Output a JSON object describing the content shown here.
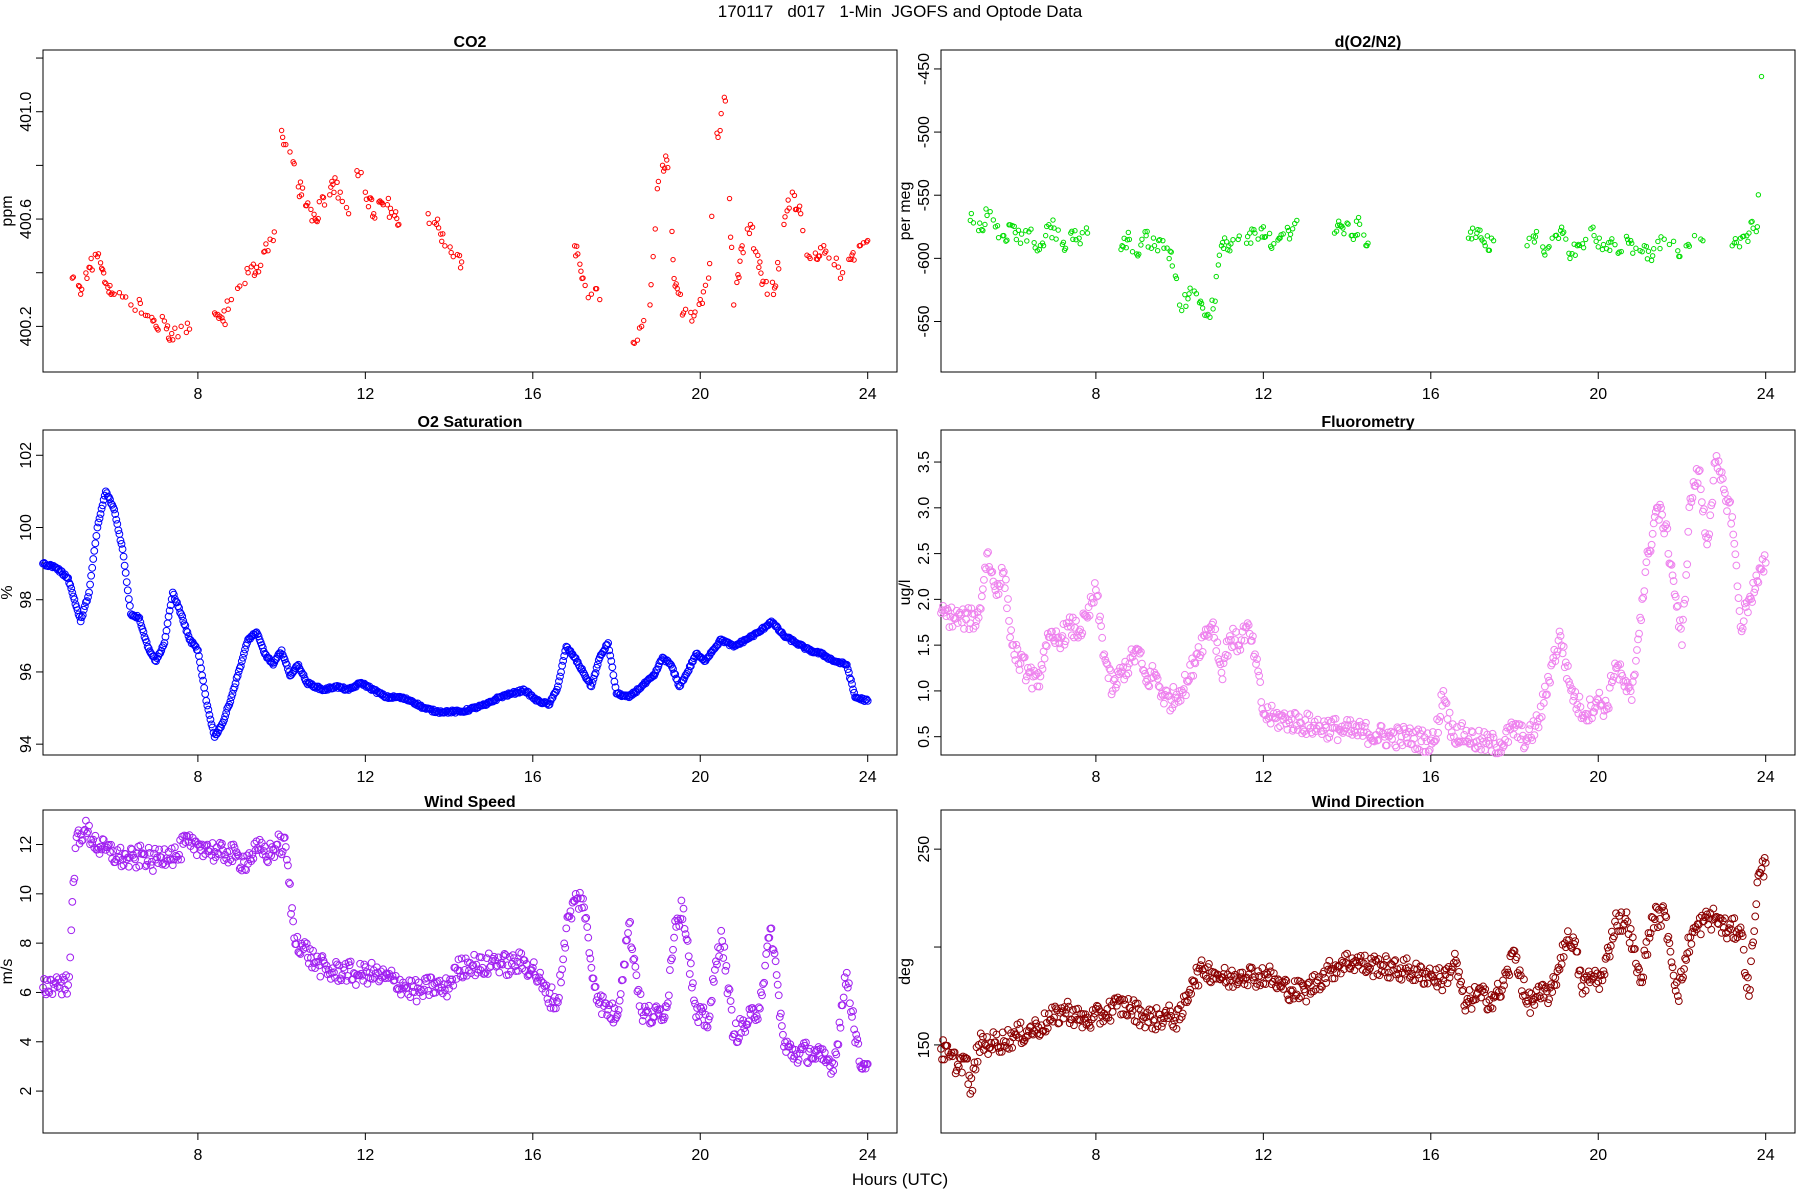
{
  "figure": {
    "title": "170117   d017   1-Min  JGOFS and Optode Data",
    "xlabel": "Hours (UTC)"
  },
  "chart_data": [
    {
      "id": "co2",
      "type": "scatter",
      "title": "CO2",
      "ylabel": "ppm",
      "color": "#ff0000",
      "marker_size": 2.2,
      "xlim": [
        4.3,
        24.7
      ],
      "ylim": [
        400.03,
        401.23
      ],
      "xticks": [
        8,
        12,
        16,
        20,
        24
      ],
      "xtick_labels": [
        "8",
        "12",
        "16",
        "20",
        "24"
      ],
      "yticks": [
        400.2,
        400.4,
        400.6,
        400.8,
        401.0,
        401.2
      ],
      "ytick_labels": [
        "400.2",
        "",
        "400.6",
        "",
        "401.0",
        ""
      ],
      "x": [
        5.0,
        5.2,
        5.4,
        5.6,
        5.8,
        6.0,
        6.2,
        6.4,
        6.6,
        6.8,
        7.0,
        7.2,
        7.4,
        7.6,
        7.8,
        8.4,
        8.6,
        8.8,
        9.0,
        9.2,
        9.4,
        9.6,
        9.8,
        10.0,
        10.2,
        10.4,
        10.6,
        10.8,
        11.0,
        11.2,
        11.4,
        11.6,
        11.8,
        12.0,
        12.2,
        12.4,
        12.6,
        12.8,
        13.5,
        13.7,
        13.9,
        14.1,
        14.3,
        17.0,
        17.2,
        17.4,
        17.6,
        18.4,
        18.6,
        18.8,
        19.0,
        19.2,
        19.4,
        19.6,
        19.8,
        20.0,
        20.2,
        20.4,
        20.6,
        20.8,
        21.0,
        21.2,
        21.4,
        21.6,
        21.8,
        22.0,
        22.2,
        22.4,
        22.6,
        22.8,
        23.0,
        23.2,
        23.4,
        23.6,
        23.8,
        24.0
      ],
      "y": [
        400.38,
        400.32,
        400.42,
        400.46,
        400.36,
        400.32,
        400.31,
        400.28,
        400.3,
        400.24,
        400.2,
        400.22,
        400.15,
        400.2,
        400.19,
        400.25,
        400.22,
        400.3,
        400.35,
        400.4,
        400.42,
        400.48,
        400.52,
        400.93,
        400.85,
        400.72,
        400.65,
        400.6,
        400.68,
        400.74,
        400.7,
        400.62,
        400.78,
        400.7,
        400.62,
        400.66,
        400.64,
        400.58,
        400.62,
        400.58,
        400.5,
        400.46,
        400.44,
        400.5,
        400.38,
        400.32,
        400.3,
        400.14,
        400.2,
        400.28,
        400.74,
        400.82,
        400.35,
        400.25,
        400.22,
        400.3,
        400.38,
        400.92,
        401.04,
        400.28,
        400.5,
        400.58,
        400.42,
        400.32,
        400.35,
        400.58,
        400.7,
        400.62,
        400.46,
        400.45,
        400.48,
        400.43,
        400.4,
        400.45,
        400.5,
        400.52
      ]
    },
    {
      "id": "do2n2",
      "type": "scatter",
      "title": "d(O2/N2)",
      "ylabel": "per meg",
      "color": "#00dd00",
      "marker_size": 2.2,
      "xlim": [
        4.3,
        24.7
      ],
      "ylim": [
        -690,
        -435
      ],
      "xticks": [
        8,
        12,
        16,
        20,
        24
      ],
      "xtick_labels": [
        "8",
        "12",
        "16",
        "20",
        "24"
      ],
      "yticks": [
        -650,
        -600,
        -550,
        -500,
        -450
      ],
      "ytick_labels": [
        "-650",
        "-600",
        "-550",
        "-500",
        "-450"
      ],
      "x": [
        5.0,
        5.2,
        5.4,
        5.6,
        5.8,
        6.0,
        6.2,
        6.4,
        6.6,
        6.8,
        7.0,
        7.2,
        7.4,
        7.6,
        7.8,
        8.6,
        8.8,
        9.0,
        9.2,
        9.4,
        9.6,
        9.8,
        10.0,
        10.2,
        10.4,
        10.6,
        10.8,
        11.0,
        11.2,
        11.4,
        11.6,
        11.8,
        12.0,
        12.2,
        12.4,
        12.6,
        12.8,
        13.7,
        13.9,
        14.1,
        14.3,
        14.5,
        16.9,
        17.1,
        17.3,
        17.5,
        18.3,
        18.5,
        18.7,
        18.9,
        19.1,
        19.3,
        19.5,
        19.7,
        19.9,
        20.1,
        20.3,
        20.5,
        20.7,
        20.9,
        21.1,
        21.3,
        21.5,
        21.7,
        21.9,
        22.1,
        22.3,
        22.5,
        23.2,
        23.4,
        23.6,
        23.8,
        23.9
      ],
      "y": [
        -570,
        -578,
        -566,
        -575,
        -582,
        -574,
        -588,
        -579,
        -594,
        -582,
        -576,
        -589,
        -580,
        -584,
        -580,
        -593,
        -585,
        -598,
        -582,
        -590,
        -586,
        -595,
        -637,
        -632,
        -628,
        -645,
        -640,
        -590,
        -594,
        -585,
        -588,
        -580,
        -575,
        -592,
        -584,
        -578,
        -570,
        -580,
        -576,
        -582,
        -573,
        -588,
        -584,
        -580,
        -590,
        -586,
        -590,
        -583,
        -595,
        -584,
        -578,
        -596,
        -590,
        -585,
        -582,
        -593,
        -587,
        -595,
        -585,
        -592,
        -590,
        -598,
        -583,
        -589,
        -594,
        -590,
        -582,
        -586,
        -590,
        -584,
        -580,
        -575,
        -456
      ]
    },
    {
      "id": "o2sat",
      "type": "scatter",
      "title": "O2 Saturation",
      "ylabel": "%",
      "color": "#0000ff",
      "marker_size": 3.4,
      "xlim": [
        4.3,
        24.7
      ],
      "ylim": [
        93.7,
        102.7
      ],
      "xticks": [
        8,
        12,
        16,
        20,
        24
      ],
      "xtick_labels": [
        "8",
        "12",
        "16",
        "20",
        "24"
      ],
      "yticks": [
        94,
        96,
        98,
        100,
        102
      ],
      "ytick_labels": [
        "94",
        "96",
        "98",
        "100",
        "102"
      ],
      "x": [
        4.3,
        4.6,
        4.9,
        5.2,
        5.4,
        5.6,
        5.8,
        6.0,
        6.2,
        6.4,
        6.6,
        6.8,
        7.0,
        7.2,
        7.4,
        7.6,
        7.8,
        8.0,
        8.2,
        8.4,
        8.6,
        8.8,
        9.0,
        9.2,
        9.4,
        9.6,
        9.8,
        10.0,
        10.2,
        10.4,
        10.6,
        10.8,
        11.0,
        11.3,
        11.6,
        11.9,
        12.2,
        12.5,
        12.8,
        13.1,
        13.4,
        13.7,
        14.0,
        14.3,
        14.6,
        14.9,
        15.2,
        15.5,
        15.8,
        16.1,
        16.4,
        16.6,
        16.8,
        17.0,
        17.2,
        17.4,
        17.6,
        17.8,
        18.0,
        18.3,
        18.6,
        18.9,
        19.1,
        19.3,
        19.5,
        19.7,
        19.9,
        20.1,
        20.3,
        20.5,
        20.8,
        21.1,
        21.4,
        21.7,
        22.0,
        22.3,
        22.6,
        22.9,
        23.2,
        23.5,
        23.7,
        24.0
      ],
      "y": [
        99.0,
        98.9,
        98.6,
        97.4,
        98.2,
        100.0,
        101.0,
        100.5,
        99.4,
        97.6,
        97.5,
        96.7,
        96.3,
        96.8,
        98.2,
        97.6,
        96.9,
        96.6,
        95.2,
        94.2,
        94.6,
        95.3,
        96.1,
        96.9,
        97.1,
        96.5,
        96.2,
        96.6,
        95.9,
        96.2,
        95.7,
        95.6,
        95.5,
        95.6,
        95.5,
        95.7,
        95.5,
        95.3,
        95.3,
        95.2,
        95.0,
        94.9,
        94.9,
        94.9,
        95.0,
        95.1,
        95.3,
        95.4,
        95.5,
        95.2,
        95.1,
        95.6,
        96.7,
        96.4,
        96.0,
        95.6,
        96.4,
        96.8,
        95.4,
        95.3,
        95.6,
        95.9,
        96.4,
        96.2,
        95.6,
        96.0,
        96.5,
        96.3,
        96.6,
        96.9,
        96.7,
        96.9,
        97.1,
        97.4,
        97.0,
        96.8,
        96.6,
        96.5,
        96.3,
        96.2,
        95.3,
        95.2
      ]
    },
    {
      "id": "fluor",
      "type": "scatter",
      "title": "Fluorometry",
      "ylabel": "ug/l",
      "color": "#ee82ee",
      "marker_size": 3.4,
      "xlim": [
        4.3,
        24.7
      ],
      "ylim": [
        0.3,
        3.85
      ],
      "xticks": [
        8,
        12,
        16,
        20,
        24
      ],
      "xtick_labels": [
        "8",
        "12",
        "16",
        "20",
        "24"
      ],
      "yticks": [
        0.5,
        1.0,
        1.5,
        2.0,
        2.5,
        3.0,
        3.5
      ],
      "ytick_labels": [
        "0.5",
        "1.0",
        "1.5",
        "2.0",
        "2.5",
        "3.0",
        "3.5"
      ],
      "x": [
        4.3,
        4.6,
        4.9,
        5.2,
        5.4,
        5.6,
        5.8,
        6.0,
        6.2,
        6.4,
        6.6,
        6.8,
        7.0,
        7.2,
        7.4,
        7.6,
        7.8,
        8.0,
        8.2,
        8.4,
        8.6,
        8.8,
        9.0,
        9.2,
        9.4,
        9.6,
        9.8,
        10.0,
        10.2,
        10.4,
        10.6,
        10.8,
        11.0,
        11.2,
        11.4,
        11.6,
        11.8,
        12.0,
        12.3,
        12.6,
        12.9,
        13.2,
        13.5,
        13.8,
        14.1,
        14.4,
        14.7,
        15.0,
        15.3,
        15.6,
        15.9,
        16.1,
        16.3,
        16.5,
        16.8,
        17.1,
        17.4,
        17.7,
        18.0,
        18.3,
        18.6,
        18.9,
        19.1,
        19.3,
        19.5,
        19.7,
        20.0,
        20.2,
        20.4,
        20.6,
        20.8,
        21.0,
        21.2,
        21.4,
        21.6,
        21.8,
        22.0,
        22.2,
        22.4,
        22.6,
        22.8,
        23.0,
        23.2,
        23.4,
        23.6,
        23.8,
        24.0
      ],
      "y": [
        1.85,
        1.8,
        1.78,
        1.8,
        2.5,
        2.1,
        2.3,
        1.5,
        1.3,
        1.2,
        1.05,
        1.5,
        1.55,
        1.6,
        1.7,
        1.65,
        1.8,
        2.1,
        1.4,
        1.0,
        1.2,
        1.3,
        1.45,
        1.1,
        1.2,
        0.95,
        0.9,
        1.0,
        1.1,
        1.4,
        1.6,
        1.75,
        1.2,
        1.6,
        1.5,
        1.7,
        1.4,
        0.75,
        0.7,
        0.68,
        0.65,
        0.62,
        0.6,
        0.58,
        0.56,
        0.55,
        0.52,
        0.5,
        0.5,
        0.48,
        0.45,
        0.45,
        1.0,
        0.55,
        0.52,
        0.45,
        0.42,
        0.42,
        0.6,
        0.45,
        0.7,
        1.3,
        1.6,
        1.1,
        0.85,
        0.75,
        0.9,
        0.8,
        1.3,
        1.1,
        0.9,
        1.8,
        2.5,
        3.0,
        2.8,
        2.2,
        1.5,
        3.1,
        3.4,
        2.6,
        3.5,
        3.2,
        2.9,
        1.7,
        2.0,
        2.2,
        2.4
      ]
    },
    {
      "id": "wspd",
      "type": "scatter",
      "title": "Wind Speed",
      "ylabel": "m/s",
      "color": "#a020f0",
      "marker_size": 3.4,
      "xlim": [
        4.3,
        24.7
      ],
      "ylim": [
        0.3,
        13.4
      ],
      "xticks": [
        8,
        12,
        16,
        20,
        24
      ],
      "xtick_labels": [
        "8",
        "12",
        "16",
        "20",
        "24"
      ],
      "yticks": [
        2,
        4,
        6,
        8,
        10,
        12
      ],
      "ytick_labels": [
        "2",
        "4",
        "6",
        "8",
        "10",
        "12"
      ],
      "x": [
        4.3,
        4.6,
        4.9,
        5.1,
        5.3,
        5.5,
        5.7,
        5.9,
        6.1,
        6.3,
        6.5,
        6.7,
        6.9,
        7.1,
        7.3,
        7.5,
        7.7,
        7.9,
        8.1,
        8.3,
        8.5,
        8.7,
        8.9,
        9.1,
        9.3,
        9.5,
        9.7,
        9.9,
        10.1,
        10.3,
        10.5,
        10.7,
        10.9,
        11.2,
        11.5,
        11.8,
        12.1,
        12.4,
        12.7,
        13.0,
        13.3,
        13.6,
        13.9,
        14.2,
        14.5,
        14.8,
        15.1,
        15.4,
        15.7,
        16.0,
        16.3,
        16.6,
        16.8,
        17.0,
        17.2,
        17.4,
        17.6,
        17.8,
        18.0,
        18.3,
        18.6,
        18.9,
        19.2,
        19.4,
        19.6,
        19.9,
        20.2,
        20.5,
        20.8,
        21.1,
        21.4,
        21.7,
        22.0,
        22.3,
        22.6,
        22.9,
        23.2,
        23.5,
        23.8,
        24.0
      ],
      "y": [
        6.2,
        6.4,
        6.3,
        12.3,
        12.6,
        12.2,
        11.8,
        11.7,
        11.5,
        11.4,
        11.4,
        11.6,
        11.3,
        11.5,
        11.7,
        11.5,
        12.1,
        11.8,
        12.0,
        11.8,
        11.6,
        11.7,
        11.5,
        11.3,
        11.6,
        11.8,
        11.6,
        12.0,
        11.9,
        8.2,
        7.9,
        7.4,
        7.1,
        6.8,
        6.9,
        6.7,
        6.8,
        6.6,
        6.5,
        6.2,
        6.0,
        6.3,
        6.1,
        6.9,
        7.2,
        7.0,
        7.3,
        7.1,
        7.2,
        7.0,
        6.0,
        5.6,
        8.6,
        9.7,
        9.8,
        7.0,
        5.6,
        5.3,
        5.0,
        8.8,
        5.2,
        5.0,
        5.4,
        8.9,
        9.4,
        5.0,
        4.9,
        8.5,
        4.3,
        4.7,
        5.4,
        8.6,
        3.8,
        3.5,
        3.6,
        3.3,
        3.1,
        6.8,
        3.2,
        3.1
      ]
    },
    {
      "id": "wdir",
      "type": "scatter",
      "title": "Wind Direction",
      "ylabel": "deg",
      "color": "#8b0000",
      "marker_size": 3.4,
      "xlim": [
        4.3,
        24.7
      ],
      "ylim": [
        105,
        270
      ],
      "xticks": [
        8,
        12,
        16,
        20,
        24
      ],
      "xtick_labels": [
        "8",
        "12",
        "16",
        "20",
        "24"
      ],
      "yticks": [
        150,
        200,
        250
      ],
      "ytick_labels": [
        "150",
        "",
        "250"
      ],
      "x": [
        4.3,
        4.5,
        4.7,
        4.9,
        5.0,
        5.2,
        5.5,
        5.8,
        6.1,
        6.4,
        6.7,
        7.0,
        7.3,
        7.6,
        7.9,
        8.2,
        8.5,
        8.8,
        9.1,
        9.4,
        9.7,
        10.0,
        10.3,
        10.6,
        10.9,
        11.2,
        11.5,
        11.8,
        12.1,
        12.4,
        12.7,
        13.0,
        13.3,
        13.6,
        13.9,
        14.2,
        14.5,
        14.8,
        15.1,
        15.4,
        15.7,
        16.0,
        16.3,
        16.6,
        16.8,
        17.1,
        17.4,
        17.7,
        18.0,
        18.3,
        18.6,
        18.9,
        19.2,
        19.4,
        19.6,
        19.9,
        20.1,
        20.4,
        20.7,
        21.0,
        21.3,
        21.6,
        21.9,
        22.2,
        22.5,
        22.8,
        23.1,
        23.4,
        23.6,
        23.8,
        24.0
      ],
      "y": [
        148,
        144,
        140,
        143,
        125,
        150,
        151,
        152,
        155,
        157,
        160,
        164,
        168,
        163,
        163,
        166,
        170,
        169,
        165,
        163,
        165,
        163,
        183,
        189,
        186,
        183,
        187,
        185,
        186,
        180,
        178,
        177,
        183,
        188,
        192,
        193,
        190,
        191,
        188,
        189,
        186,
        186,
        183,
        193,
        170,
        176,
        173,
        178,
        198,
        171,
        175,
        177,
        202,
        205,
        180,
        185,
        183,
        213,
        213,
        182,
        215,
        216,
        175,
        205,
        213,
        215,
        208,
        210,
        175,
        233,
        243
      ]
    }
  ]
}
